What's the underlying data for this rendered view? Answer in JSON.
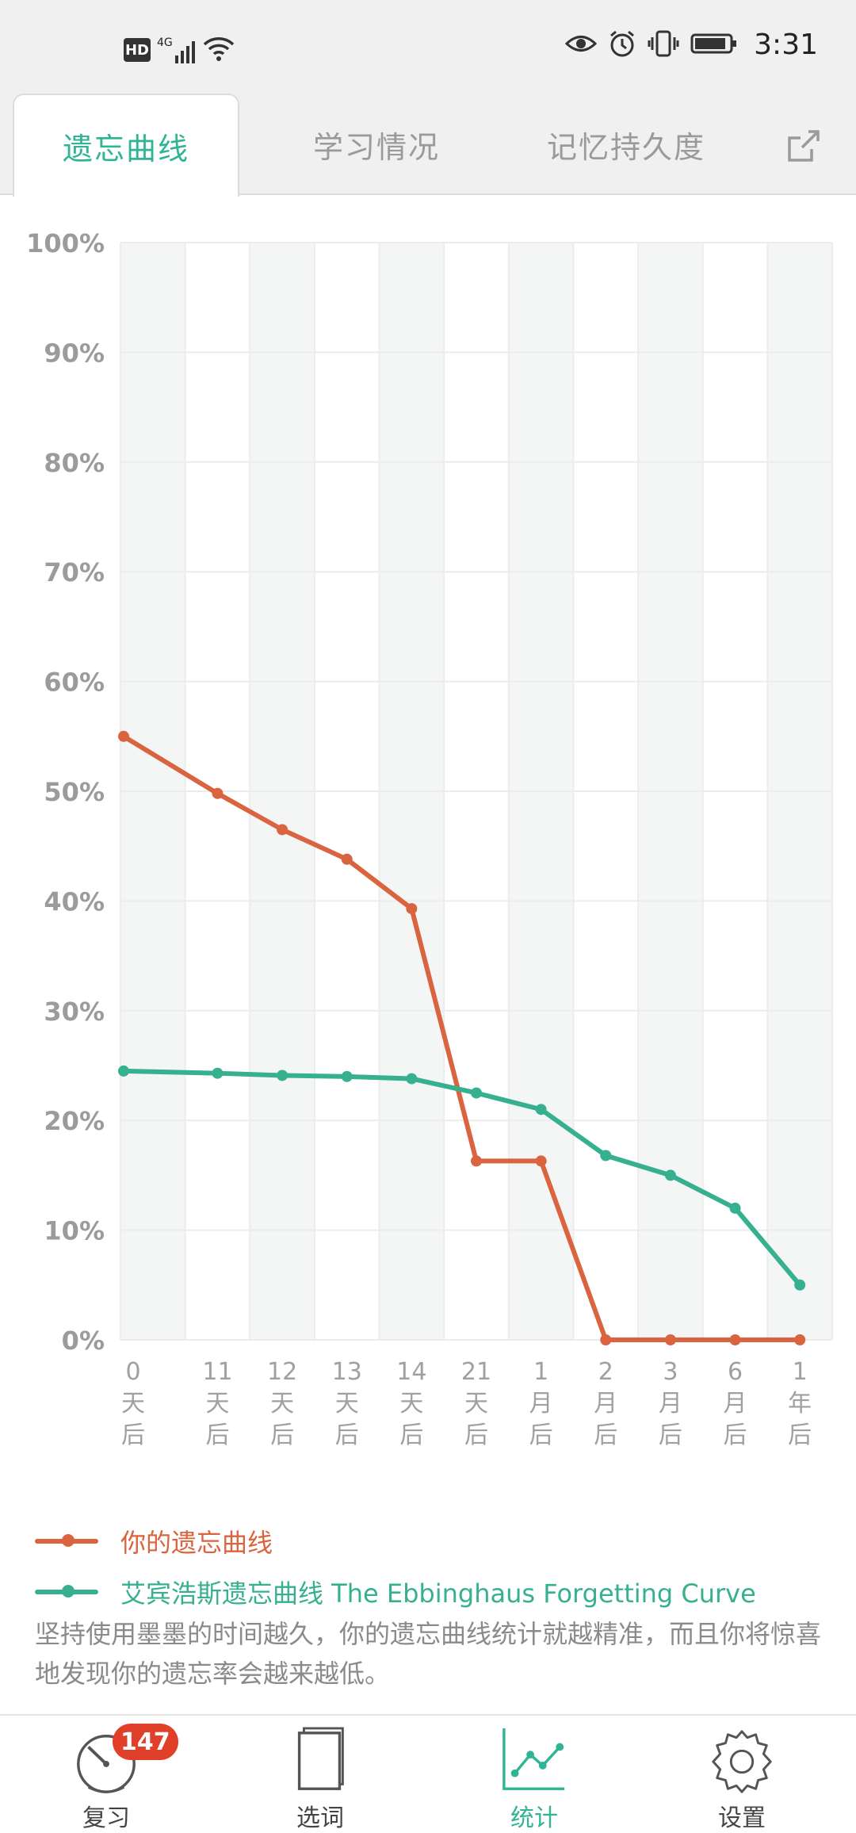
{
  "status_bar": {
    "hd": "HD",
    "network": "4G",
    "time": "3:31",
    "icons": [
      "hd-icon",
      "signal-icon",
      "wifi-icon",
      "eye-icon",
      "alarm-icon",
      "vibrate-icon",
      "battery-icon"
    ]
  },
  "tabs": {
    "items": [
      {
        "label": "遗忘曲线",
        "active": true
      },
      {
        "label": "学习情况",
        "active": false
      },
      {
        "label": "记忆持久度",
        "active": false
      }
    ],
    "share_icon": "share-icon"
  },
  "chart_data": {
    "type": "line",
    "y_ticks": [
      "100%",
      "90%",
      "80%",
      "70%",
      "60%",
      "50%",
      "40%",
      "30%",
      "20%",
      "10%",
      "0%"
    ],
    "ylim": [
      0,
      100
    ],
    "categories": [
      [
        "0",
        "天",
        "后"
      ],
      [
        "11",
        "天",
        "后"
      ],
      [
        "12",
        "天",
        "后"
      ],
      [
        "13",
        "天",
        "后"
      ],
      [
        "14",
        "天",
        "后"
      ],
      [
        "21",
        "天",
        "后"
      ],
      [
        "1",
        "月",
        "后"
      ],
      [
        "2",
        "月",
        "后"
      ],
      [
        "3",
        "月",
        "后"
      ],
      [
        "6",
        "月",
        "后"
      ],
      [
        "1",
        "年",
        "后"
      ]
    ],
    "series": [
      {
        "name": "你的遗忘曲线",
        "color": "#d9643f",
        "values": [
          55,
          49.8,
          46.5,
          43.8,
          39.3,
          16.3,
          16.3,
          0,
          0,
          0,
          0
        ]
      },
      {
        "name": "艾宾浩斯遗忘曲线 The Ebbinghaus Forgetting Curve",
        "color": "#36b08f",
        "values": [
          24.5,
          24.3,
          24.1,
          24.0,
          23.8,
          22.5,
          21.0,
          16.8,
          15.0,
          12.0,
          5.0
        ]
      }
    ],
    "grid": true
  },
  "legend": [
    {
      "label": "你的遗忘曲线",
      "color": "#d9643f"
    },
    {
      "label": "艾宾浩斯遗忘曲线 The Ebbinghaus Forgetting Curve",
      "color": "#36b08f"
    }
  ],
  "note": "坚持使用墨墨的时间越久，你的遗忘曲线统计就越精准，而且你将惊喜地发现你的遗忘率会越来越低。",
  "bottom_nav": {
    "items": [
      {
        "label": "复习",
        "icon": "gauge-icon",
        "badge": "147",
        "active": false
      },
      {
        "label": "选词",
        "icon": "book-icon",
        "active": false
      },
      {
        "label": "统计",
        "icon": "chart-icon",
        "active": true
      },
      {
        "label": "设置",
        "icon": "gear-icon",
        "active": false
      }
    ]
  },
  "colors": {
    "accent": "#2fb494",
    "orange": "#d9643f",
    "badge": "#e0402a"
  }
}
